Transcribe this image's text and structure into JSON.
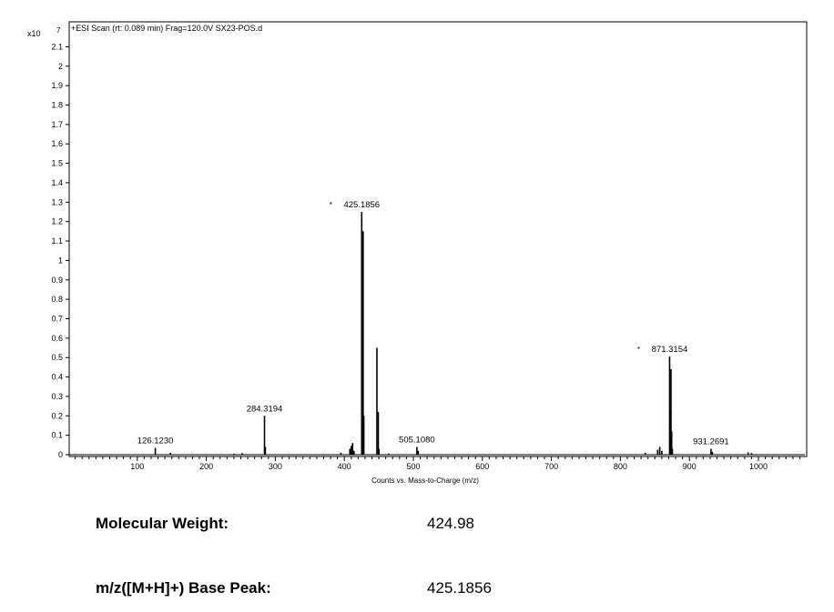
{
  "chart_data": {
    "type": "bar",
    "title": "+ESI Scan (rt: 0.089 min) Frag=120.0V SX23-POS.d",
    "xlabel": "Counts vs. Mass-to-Charge (m/z)",
    "y_multiplier_label": "x10",
    "y_exponent": "7",
    "xlim": [
      0,
      1065
    ],
    "ylim": [
      0,
      2.2
    ],
    "x_ticks": [
      100,
      200,
      300,
      400,
      500,
      600,
      700,
      800,
      900,
      1000
    ],
    "y_ticks": [
      0,
      0.1,
      0.2,
      0.3,
      0.4,
      0.5,
      0.6,
      0.7,
      0.8,
      0.9,
      1,
      1.1,
      1.2,
      1.3,
      1.4,
      1.5,
      1.6,
      1.7,
      1.8,
      1.9,
      2,
      2.1
    ],
    "peaks": [
      {
        "mz": 126.123,
        "intensity": 0.035
      },
      {
        "mz": 148.0,
        "intensity": 0.01
      },
      {
        "mz": 240.0,
        "intensity": 0.005
      },
      {
        "mz": 252.0,
        "intensity": 0.008
      },
      {
        "mz": 284.3194,
        "intensity": 0.2
      },
      {
        "mz": 285.5,
        "intensity": 0.04
      },
      {
        "mz": 395.0,
        "intensity": 0.01
      },
      {
        "mz": 408.0,
        "intensity": 0.03
      },
      {
        "mz": 410.0,
        "intensity": 0.045
      },
      {
        "mz": 412.0,
        "intensity": 0.06
      },
      {
        "mz": 414.0,
        "intensity": 0.02
      },
      {
        "mz": 425.1856,
        "intensity": 1.25
      },
      {
        "mz": 426.2,
        "intensity": 0.89
      },
      {
        "mz": 427.2,
        "intensity": 1.15
      },
      {
        "mz": 428.2,
        "intensity": 0.2
      },
      {
        "mz": 447.2,
        "intensity": 0.55
      },
      {
        "mz": 449.2,
        "intensity": 0.22
      },
      {
        "mz": 450.2,
        "intensity": 0.03
      },
      {
        "mz": 464.0,
        "intensity": 0.006
      },
      {
        "mz": 505.108,
        "intensity": 0.04
      },
      {
        "mz": 507.1,
        "intensity": 0.02
      },
      {
        "mz": 836.0,
        "intensity": 0.01
      },
      {
        "mz": 854.0,
        "intensity": 0.025
      },
      {
        "mz": 857.0,
        "intensity": 0.04
      },
      {
        "mz": 860.0,
        "intensity": 0.02
      },
      {
        "mz": 871.3154,
        "intensity": 0.505
      },
      {
        "mz": 872.3,
        "intensity": 0.235
      },
      {
        "mz": 873.3,
        "intensity": 0.44
      },
      {
        "mz": 874.3,
        "intensity": 0.12
      },
      {
        "mz": 875.3,
        "intensity": 0.03
      },
      {
        "mz": 931.2691,
        "intensity": 0.03
      },
      {
        "mz": 933.3,
        "intensity": 0.015
      },
      {
        "mz": 985.0,
        "intensity": 0.012
      },
      {
        "mz": 990.0,
        "intensity": 0.008
      }
    ],
    "annotations": [
      {
        "text": "126.1230",
        "mz": 126.123,
        "intensity": 0.035,
        "marked": false
      },
      {
        "text": "284.3194",
        "mz": 284.3194,
        "intensity": 0.2,
        "marked": false
      },
      {
        "text": "425.1856",
        "mz": 425.1856,
        "intensity": 1.25,
        "marked": true
      },
      {
        "text": "505.1080",
        "mz": 505.108,
        "intensity": 0.04,
        "marked": false
      },
      {
        "text": "871.3154",
        "mz": 871.3154,
        "intensity": 0.505,
        "marked": true
      },
      {
        "text": "931.2691",
        "mz": 931.2691,
        "intensity": 0.03,
        "marked": false
      }
    ],
    "grid": false,
    "legend": "none"
  },
  "info": {
    "molecular_weight_label": "Molecular Weight:",
    "molecular_weight_value": "424.98",
    "base_peak_label": "m/z([M+H]+) Base Peak:",
    "base_peak_value": "425.1856"
  }
}
